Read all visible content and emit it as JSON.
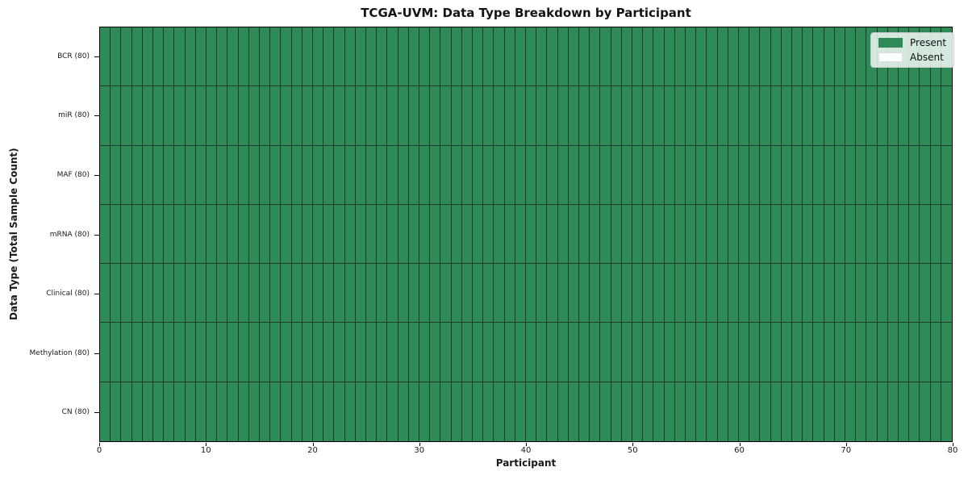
{
  "window": {
    "background": "#ffffff"
  },
  "chart_data": {
    "type": "heatmap",
    "title": "TCGA-UVM: Data Type Breakdown by Participant",
    "xlabel": "Participant",
    "ylabel": "Data Type (Total Sample Count)",
    "xlim": [
      0,
      80
    ],
    "x_ticks": [
      0,
      10,
      20,
      30,
      40,
      50,
      60,
      70,
      80
    ],
    "n_participants": 80,
    "rows": [
      {
        "label": "BCR (80)",
        "data_type": "BCR",
        "total_sample_count": 80,
        "present_count": 80
      },
      {
        "label": "miR (80)",
        "data_type": "miR",
        "total_sample_count": 80,
        "present_count": 80
      },
      {
        "label": "MAF (80)",
        "data_type": "MAF",
        "total_sample_count": 80,
        "present_count": 80
      },
      {
        "label": "mRNA (80)",
        "data_type": "mRNA",
        "total_sample_count": 80,
        "present_count": 80
      },
      {
        "label": "Clinical (80)",
        "data_type": "Clinical",
        "total_sample_count": 80,
        "present_count": 80
      },
      {
        "label": "Methylation (80)",
        "data_type": "Methylation",
        "total_sample_count": 80,
        "present_count": 80
      },
      {
        "label": "CN (80)",
        "data_type": "CN",
        "total_sample_count": 80,
        "present_count": 80
      }
    ],
    "all_cells_present": true,
    "grid": true,
    "legend": {
      "position": "upper right",
      "entries": [
        {
          "label": "Present",
          "color": "#2e8b57"
        },
        {
          "label": "Absent",
          "color": "#ffffff"
        }
      ]
    }
  },
  "colors": {
    "present": "#2e8b57",
    "absent": "#ffffff",
    "cell_border": "#223a2a",
    "frame": "#000000",
    "text": "#1a1a1a",
    "legend_border": "#cccccc"
  }
}
